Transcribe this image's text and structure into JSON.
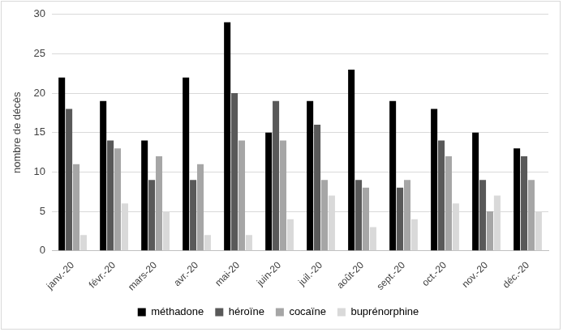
{
  "chart_data": {
    "type": "bar",
    "y_label": "nombre de décès",
    "categories": [
      "janv.-20",
      "févr.-20",
      "mars-20",
      "avr.-20",
      "mai-20",
      "juin-20",
      "juil.-20",
      "août-20",
      "sept.-20",
      "oct.-20",
      "nov.-20",
      "déc.-20"
    ],
    "series": [
      {
        "name": "méthadone",
        "color": "#000000",
        "values": [
          22,
          19,
          14,
          22,
          29,
          15,
          19,
          23,
          19,
          18,
          15,
          13
        ]
      },
      {
        "name": "héroïne",
        "color": "#595959",
        "values": [
          18,
          14,
          9,
          9,
          20,
          19,
          16,
          9,
          8,
          14,
          9,
          12
        ]
      },
      {
        "name": "cocaïne",
        "color": "#a6a6a6",
        "values": [
          11,
          13,
          12,
          11,
          14,
          14,
          9,
          8,
          9,
          12,
          5,
          9
        ]
      },
      {
        "name": "buprénorphine",
        "color": "#d9d9d9",
        "values": [
          2,
          6,
          5,
          2,
          2,
          4,
          7,
          3,
          4,
          6,
          7,
          5
        ]
      }
    ],
    "ylim": [
      0,
      30
    ],
    "yticks": [
      0,
      5,
      10,
      15,
      20,
      25,
      30
    ],
    "grid": true,
    "legend": "bottom"
  }
}
